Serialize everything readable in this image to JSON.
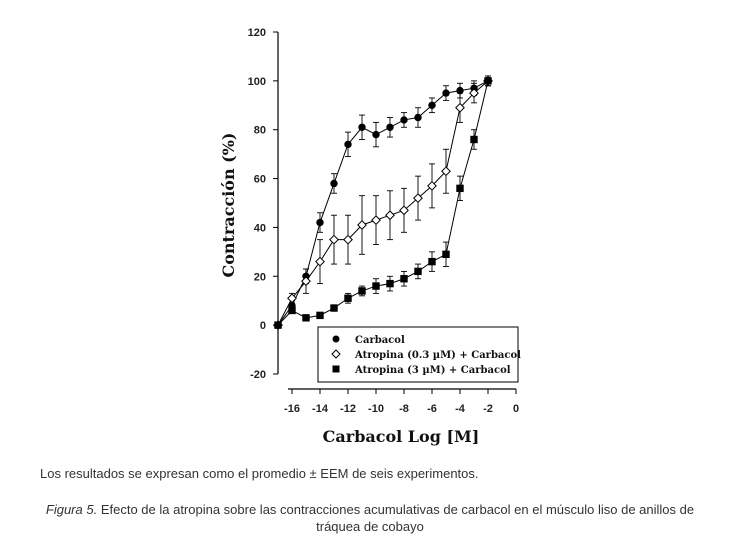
{
  "chart_data": {
    "type": "line",
    "xlabel": "Carbacol Log [M]",
    "ylabel": "Contracción (%)",
    "xlim": [
      -17,
      0
    ],
    "ylim": [
      -20,
      120
    ],
    "x_ticks": [
      -16,
      -14,
      -12,
      -10,
      -8,
      -6,
      -4,
      -2,
      0
    ],
    "y_ticks": [
      -20,
      0,
      20,
      40,
      60,
      80,
      100,
      120
    ],
    "legend_position": "bottom-right",
    "grid": false,
    "series": [
      {
        "name": "Carbacol",
        "marker": "filled-circle",
        "color": "#000000",
        "x": [
          -17,
          -16,
          -15,
          -14,
          -13,
          -12,
          -11,
          -10,
          -9,
          -8,
          -7,
          -6,
          -5,
          -4,
          -3,
          -2
        ],
        "y": [
          0,
          8,
          20,
          42,
          58,
          74,
          81,
          78,
          81,
          84,
          85,
          90,
          95,
          96,
          97,
          100
        ],
        "error": [
          0,
          1,
          3,
          4,
          4,
          5,
          5,
          5,
          4,
          3,
          4,
          3,
          3,
          3,
          3,
          2
        ]
      },
      {
        "name": "Atropina (0.3 µM) + Carbacol",
        "marker": "open-diamond",
        "color": "#000000",
        "x": [
          -17,
          -16,
          -15,
          -14,
          -13,
          -12,
          -11,
          -10,
          -9,
          -8,
          -7,
          -6,
          -5,
          -4,
          -3,
          -2
        ],
        "y": [
          0,
          11,
          18,
          26,
          35,
          35,
          41,
          43,
          45,
          47,
          52,
          57,
          63,
          89,
          95,
          100
        ],
        "error": [
          0,
          2,
          5,
          9,
          10,
          10,
          12,
          10,
          10,
          9,
          9,
          9,
          9,
          6,
          4,
          2
        ]
      },
      {
        "name": "Atropina (3 µM) + Carbacol",
        "marker": "filled-square",
        "color": "#000000",
        "x": [
          -17,
          -16,
          -15,
          -14,
          -13,
          -12,
          -11,
          -10,
          -9,
          -8,
          -7,
          -6,
          -5,
          -4,
          -3,
          -2
        ],
        "y": [
          0,
          6,
          3,
          4,
          7,
          11,
          14,
          16,
          17,
          19,
          22,
          26,
          29,
          56,
          76,
          100
        ],
        "error": [
          0,
          1,
          1,
          1,
          1,
          2,
          2,
          3,
          3,
          3,
          3,
          4,
          5,
          5,
          4,
          2
        ]
      }
    ]
  },
  "note": "Los resultados se expresan como el promedio ± EEM de seis experimentos.",
  "caption": {
    "label": "Figura 5.",
    "text": " Efecto de la atropina sobre las contracciones acumulativas de carbacol en el músculo liso de anillos de tráquea de cobayo"
  }
}
